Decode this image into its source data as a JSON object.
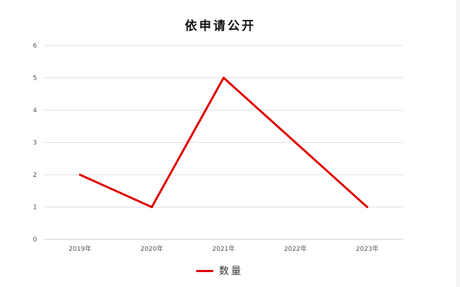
{
  "chart_data": {
    "type": "line",
    "title": "依申请公开",
    "categories": [
      "2019年",
      "2020年",
      "2021年",
      "2022年",
      "2023年"
    ],
    "series": [
      {
        "name": "数量",
        "values": [
          2,
          1,
          5,
          3,
          1
        ],
        "color": "#e00000"
      }
    ],
    "ylim": [
      0,
      6
    ],
    "yticks": [
      "0",
      "1",
      "2",
      "3",
      "4",
      "5",
      "6"
    ],
    "grid": true,
    "legend": "bottom"
  }
}
